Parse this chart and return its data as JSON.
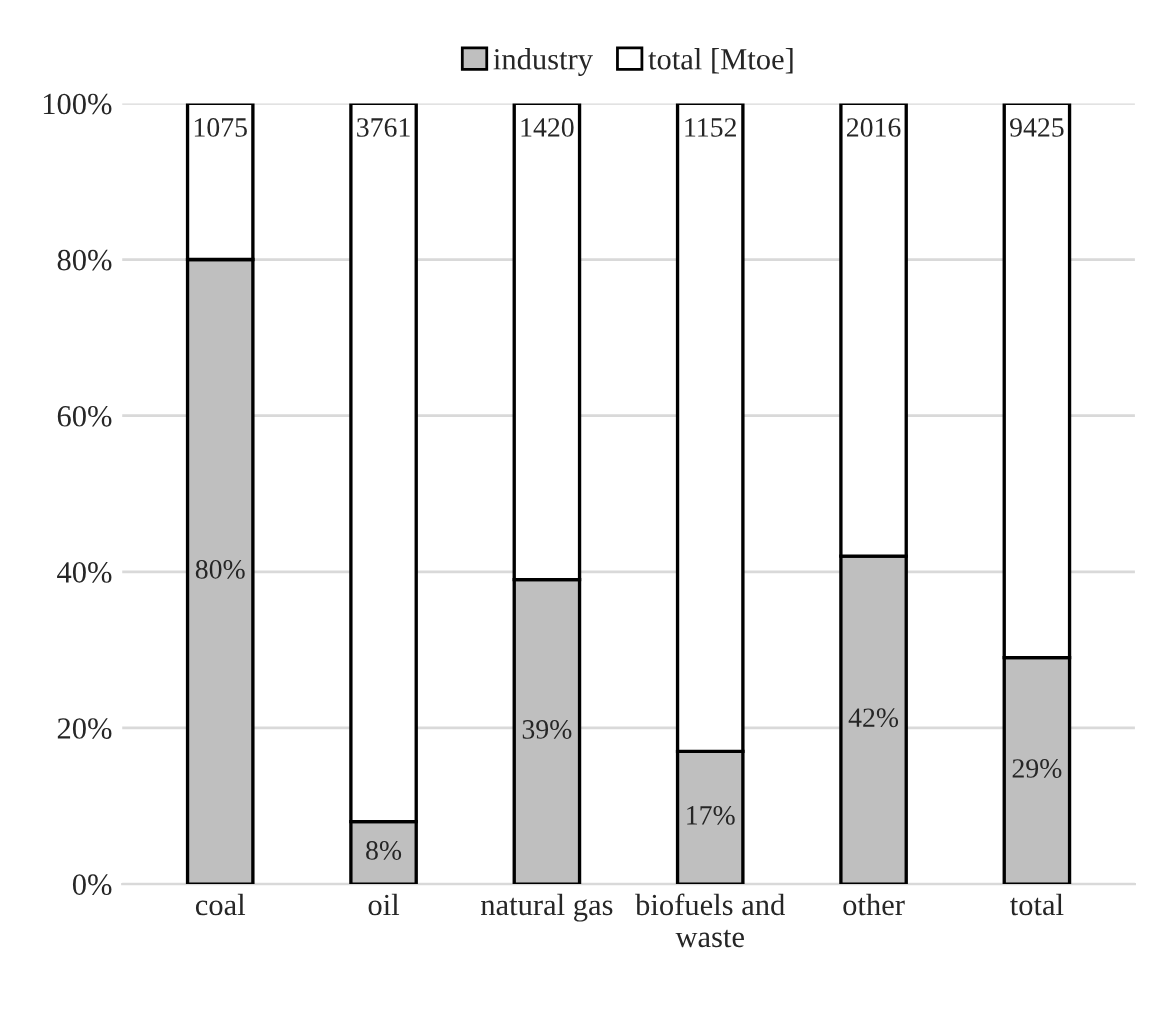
{
  "chart_data": {
    "type": "bar",
    "stacked": true,
    "categories": [
      "coal",
      "oil",
      "natural gas",
      "biofuels and\nwaste",
      "other",
      "total"
    ],
    "series": [
      {
        "name": "industry",
        "color": "#bfbfbf",
        "values": [
          80,
          8,
          39,
          17,
          42,
          29
        ],
        "value_labels": [
          "80%",
          "8%",
          "39%",
          "17%",
          "42%",
          "29%"
        ]
      },
      {
        "name": "total [Mtoe]",
        "color": "#ffffff",
        "values": [
          20,
          92,
          61,
          83,
          58,
          71
        ]
      }
    ],
    "annotations": [
      {
        "text": "1075",
        "x": "coal",
        "y": 100
      },
      {
        "text": "3761",
        "x": "oil",
        "y": 100
      },
      {
        "text": "1420",
        "x": "natural gas",
        "y": 100
      },
      {
        "text": "1152",
        "x": "biofuels and\nwaste",
        "y": 100
      },
      {
        "text": "2016",
        "x": "other",
        "y": 100
      },
      {
        "text": "9425",
        "x": "total",
        "y": 100
      }
    ],
    "ylim": [
      0,
      100
    ],
    "yticks": [
      {
        "value": 0,
        "label": "0%"
      },
      {
        "value": 20,
        "label": "20%"
      },
      {
        "value": 40,
        "label": "40%"
      },
      {
        "value": 60,
        "label": "60%"
      },
      {
        "value": 80,
        "label": "80%"
      },
      {
        "value": 100,
        "label": "100%"
      }
    ],
    "grid": "y",
    "legend": "top"
  }
}
